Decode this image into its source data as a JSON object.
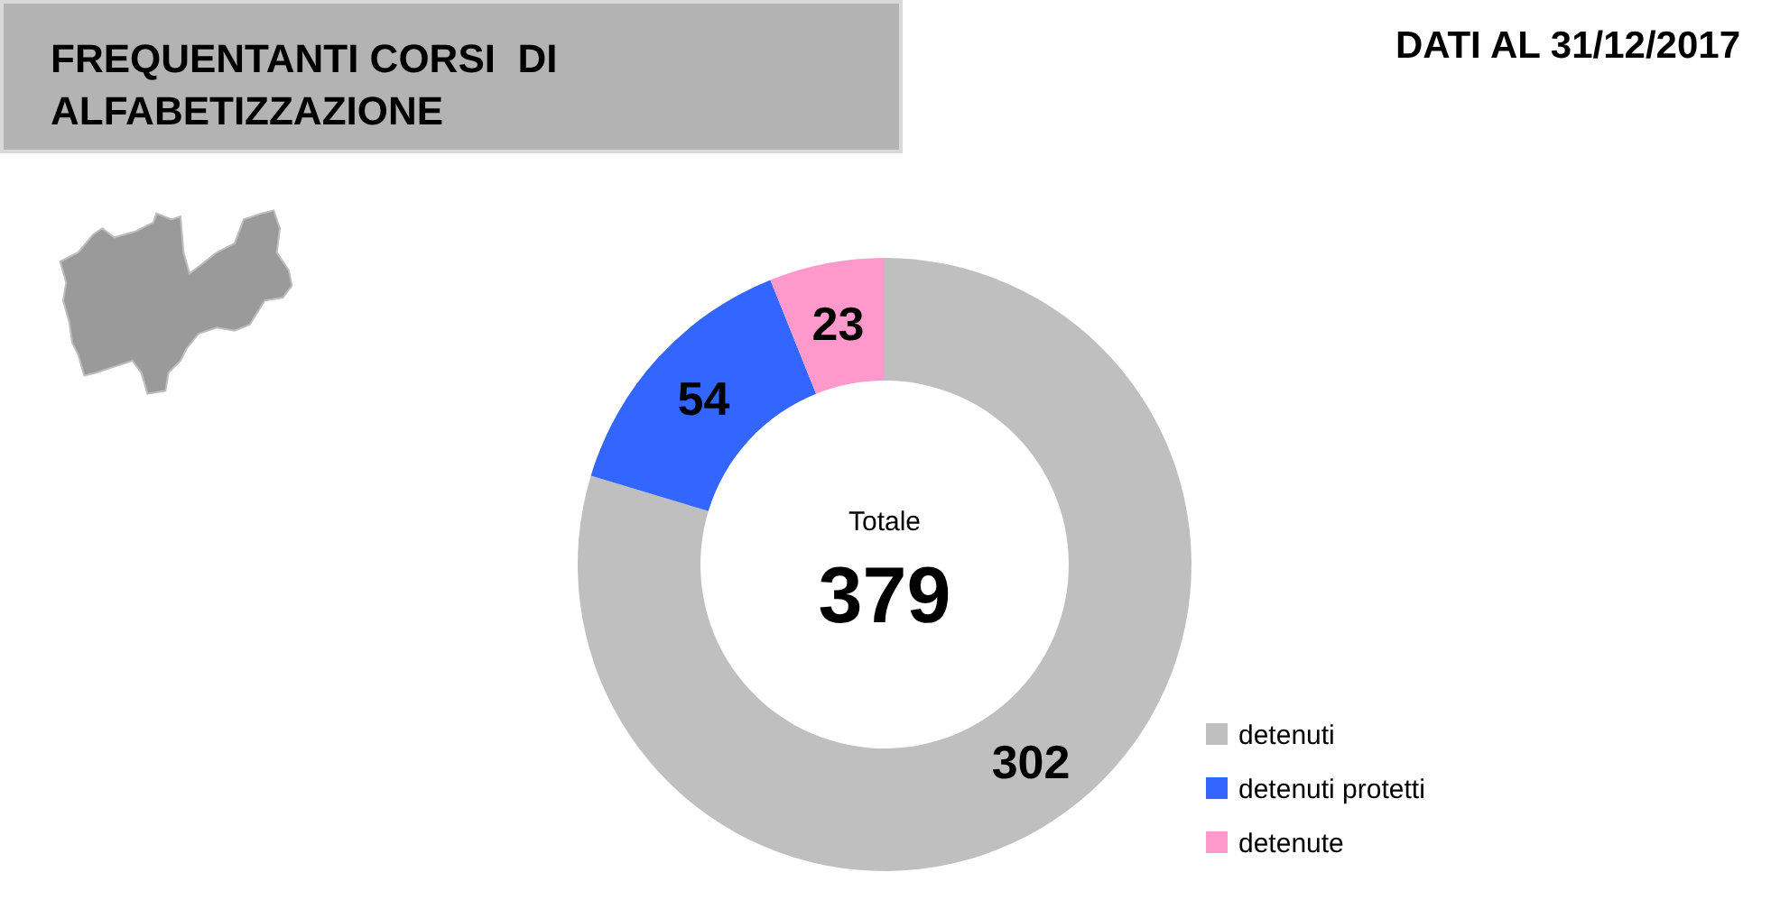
{
  "chart_data": {
    "type": "donut",
    "title": "FREQUENTANTI CORSI  DI\nALFABETIZZAZIONE",
    "annotations": [
      "DATI AL 31/12/2017",
      "Totale",
      "379"
    ],
    "categories": [
      "detenuti",
      "detenuti protetti",
      "detenute"
    ],
    "values": [
      302,
      54,
      23
    ],
    "colors": [
      "#bfbfbf",
      "#3366ff",
      "#ff99cc"
    ],
    "data_labels": true,
    "legend": "bottom right"
  }
}
